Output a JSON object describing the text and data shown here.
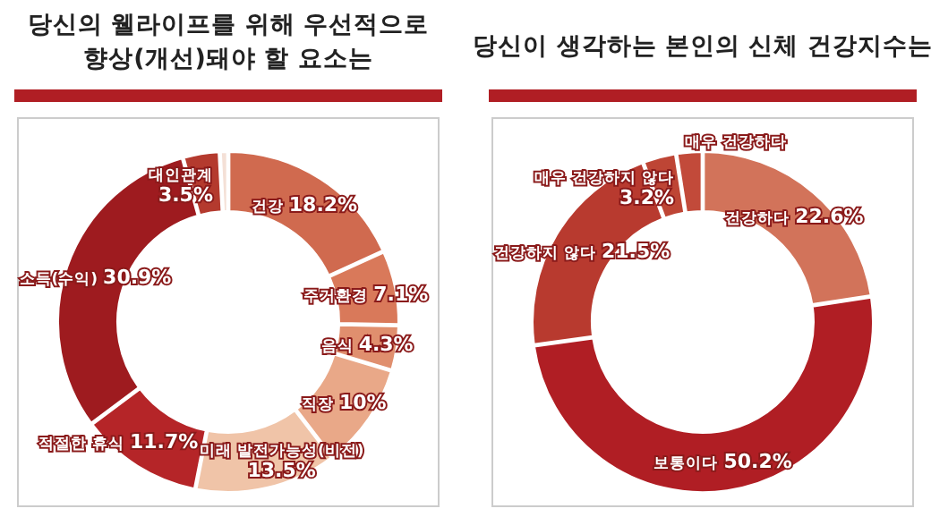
{
  "chart_data": [
    {
      "type": "donut",
      "title": "당신의 웰라이프를 위해 우선적으로\n향상(개선)돼야 할 요소는",
      "categories": [
        "건강",
        "주거환경",
        "음식",
        "직장",
        "미래 발전가능성(비전)",
        "적절한 휴식",
        "소득(수익)",
        "대인관계",
        null
      ],
      "values": [
        18.2,
        7.1,
        4.3,
        10,
        13.5,
        11.7,
        30.9,
        3.5,
        0.8
      ],
      "value_labels": [
        "18.2%",
        "7.1%",
        "4.3%",
        "10%",
        "13.5%",
        "11.7%",
        "30.9%",
        "3.5%",
        null
      ],
      "colors": [
        "#d06a4f",
        "#d9795a",
        "#e08f6e",
        "#e9a888",
        "#f0c4a8",
        "#b52528",
        "#9e1b1f",
        "#b43a2e",
        "#f4e0d6"
      ]
    },
    {
      "type": "donut",
      "title": "당신이 생각하는 본인의 신체 건강지수는",
      "categories": [
        "건강하다",
        "보통이다",
        "건강하지 않다",
        "매우 건강하지 않다",
        "매우 건강하다"
      ],
      "values": [
        22.6,
        50.2,
        21.5,
        3.2,
        2.5
      ],
      "value_labels": [
        "22.6%",
        "50.2%",
        "21.5%",
        "3.2%",
        null
      ],
      "colors": [
        "#d2735a",
        "#b01e24",
        "#b83a2f",
        "#be4535",
        "#c24a3a"
      ]
    }
  ]
}
